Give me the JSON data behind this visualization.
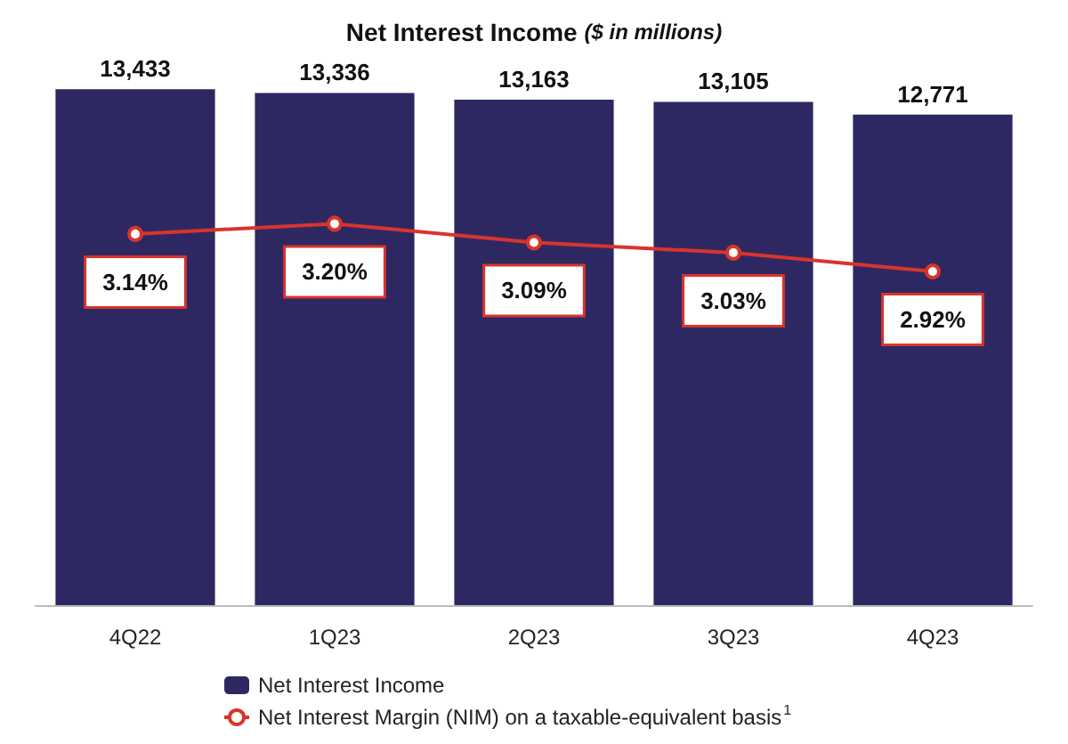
{
  "chart_data": {
    "type": "bar",
    "title": "Net Interest Income ($ in millions)",
    "categories": [
      "4Q22",
      "1Q23",
      "2Q23",
      "3Q23",
      "4Q23"
    ],
    "series": [
      {
        "name": "Net Interest Income",
        "color": "#2e2862",
        "values": [
          13433,
          13336,
          13163,
          13105,
          12771
        ],
        "value_labels": [
          "13,433",
          "13,336",
          "13,163",
          "13,105",
          "12,771"
        ]
      },
      {
        "type": "line",
        "axis": "y2",
        "name": "Net Interest Margin (NIM) on a taxable-equivalent basis$^{1}$",
        "color": "#d9342b",
        "marker": "circle",
        "values": [
          3.14,
          3.2,
          3.09,
          3.03,
          2.92
        ],
        "value_labels": [
          "3.14%",
          "3.20%",
          "3.09%",
          "3.03%",
          "2.92%"
        ]
      }
    ],
    "tick_labels": "x",
    "legend": "bottom left"
  }
}
